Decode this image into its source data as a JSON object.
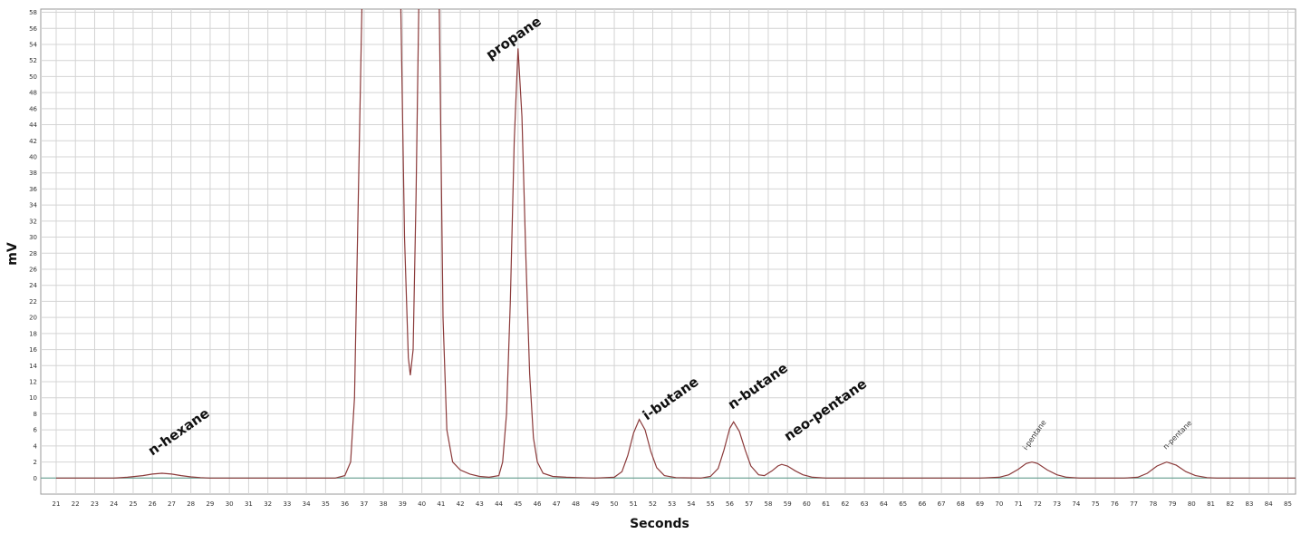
{
  "chart_data": {
    "type": "line",
    "y_label": "mV",
    "x_label": "Seconds",
    "annotations": [
      "n-hexane",
      "propane",
      "i-butane",
      "n-butane",
      "neo-pentane",
      "i-pentane",
      "n-pentane"
    ],
    "xlim": [
      20.2,
      85.4
    ],
    "ylim": [
      -2,
      58.4
    ],
    "xticks": [
      21,
      22,
      23,
      24,
      25,
      26,
      27,
      28,
      29,
      30,
      31,
      32,
      33,
      34,
      35,
      36,
      37,
      38,
      39,
      40,
      41,
      42,
      43,
      44,
      45,
      46,
      47,
      48,
      49,
      50,
      51,
      52,
      53,
      54,
      55,
      56,
      57,
      58,
      59,
      60,
      61,
      62,
      63,
      64,
      65,
      66,
      67,
      68,
      69,
      70,
      71,
      72,
      73,
      74,
      75,
      76,
      77,
      78,
      79,
      80,
      81,
      82,
      83,
      84,
      85
    ],
    "yticks": [
      0,
      2,
      4,
      6,
      8,
      10,
      12,
      14,
      16,
      18,
      20,
      22,
      24,
      26,
      28,
      30,
      32,
      34,
      36,
      38,
      40,
      42,
      44,
      46,
      48,
      50,
      52,
      54,
      56,
      58
    ],
    "grid": true,
    "series": [
      {
        "color": "#8b3a3a",
        "x": [
          21,
          24,
          24.7,
          25.5,
          26,
          26.5,
          27,
          27.5,
          28,
          28.5,
          29,
          34,
          35.5,
          36,
          36.3,
          36.5,
          36.7,
          36.9,
          38.9,
          39.1,
          39.3,
          39.4,
          39.55,
          39.7,
          39.85,
          40.9,
          41.1,
          41.3,
          41.6,
          42,
          42.5,
          43,
          43.5,
          44,
          44.2,
          44.4,
          44.6,
          44.8,
          45,
          45.2,
          45.4,
          45.6,
          45.8,
          46,
          46.3,
          46.8,
          47.5,
          49,
          50,
          50.4,
          50.7,
          51,
          51.3,
          51.6,
          51.9,
          52.2,
          52.6,
          53.2,
          54.5,
          55,
          55.4,
          55.7,
          56,
          56.2,
          56.5,
          56.8,
          57.1,
          57.5,
          57.8,
          58.2,
          58.5,
          58.7,
          59,
          59.4,
          59.8,
          60.3,
          61,
          69,
          70,
          70.5,
          71,
          71.4,
          71.7,
          72,
          72.5,
          73,
          73.5,
          74.2,
          76.5,
          77.2,
          77.7,
          78.2,
          78.7,
          79.2,
          79.7,
          80.2,
          80.8,
          81.3,
          85.4
        ],
        "values": [
          0,
          0,
          0.1,
          0.3,
          0.5,
          0.6,
          0.5,
          0.3,
          0.15,
          0.05,
          0,
          0,
          0,
          0.3,
          2,
          10,
          35,
          60,
          60,
          30,
          15,
          12.8,
          16,
          35,
          60,
          60,
          20,
          6,
          2,
          1,
          0.5,
          0.2,
          0.1,
          0.3,
          2,
          8,
          22,
          42,
          53.5,
          45,
          28,
          13,
          5,
          2,
          0.6,
          0.2,
          0.1,
          0,
          0.1,
          0.8,
          2.8,
          5.6,
          7.3,
          6,
          3.3,
          1.3,
          0.3,
          0.05,
          0,
          0.2,
          1.2,
          3.5,
          6.2,
          7,
          5.8,
          3.5,
          1.5,
          0.4,
          0.3,
          0.9,
          1.5,
          1.7,
          1.5,
          0.9,
          0.4,
          0.1,
          0,
          0,
          0.1,
          0.4,
          1.1,
          1.8,
          2,
          1.8,
          1,
          0.4,
          0.1,
          0,
          0,
          0.1,
          0.6,
          1.5,
          2,
          1.6,
          0.8,
          0.3,
          0.05,
          0,
          0
        ]
      }
    ]
  }
}
